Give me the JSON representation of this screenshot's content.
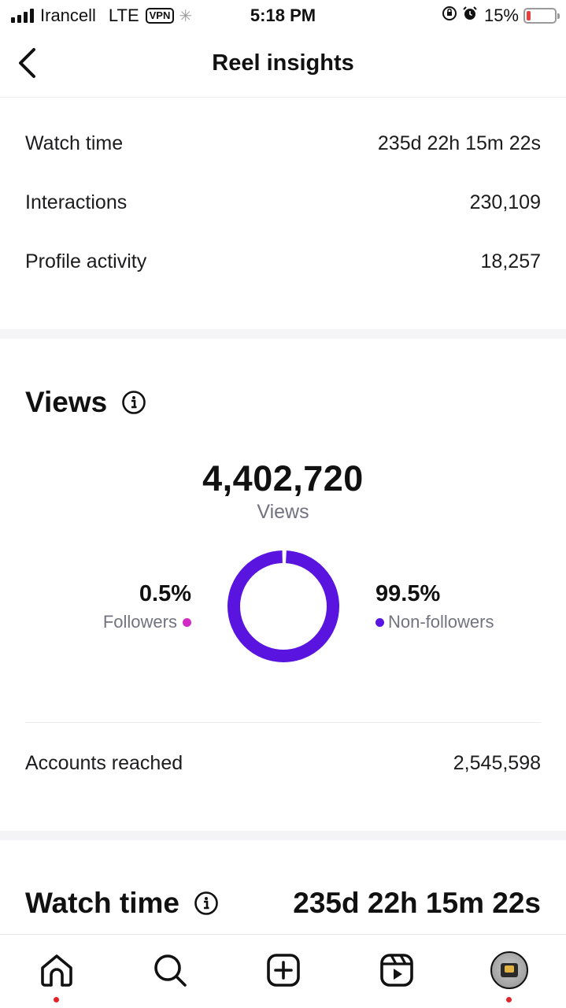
{
  "status_bar": {
    "carrier": "Irancell",
    "network": "LTE",
    "vpn": "VPN",
    "time": "5:18 PM",
    "battery_percent": "15%",
    "battery_level": 0.15
  },
  "header": {
    "title": "Reel insights"
  },
  "metrics": [
    {
      "label": "Watch time",
      "value": "235d 22h 15m 22s"
    },
    {
      "label": "Interactions",
      "value": "230,109"
    },
    {
      "label": "Profile activity",
      "value": "18,257"
    }
  ],
  "views": {
    "title": "Views",
    "total": "4,402,720",
    "caption": "Views",
    "followers_pct": "0.5%",
    "followers_label": "Followers",
    "followers_fraction": 0.005,
    "non_followers_pct": "99.5%",
    "non_followers_label": "Non-followers",
    "non_followers_fraction": 0.995,
    "followers_color": "#d12ac6",
    "non_followers_color": "#5a14e0"
  },
  "accounts_reached": {
    "label": "Accounts reached",
    "value": "2,545,598"
  },
  "watch_time_section": {
    "title": "Watch time",
    "value": "235d 22h 15m 22s"
  },
  "bottom_nav": {
    "items": [
      "home-icon",
      "search-icon",
      "create-icon",
      "reels-icon",
      "profile-avatar"
    ]
  }
}
